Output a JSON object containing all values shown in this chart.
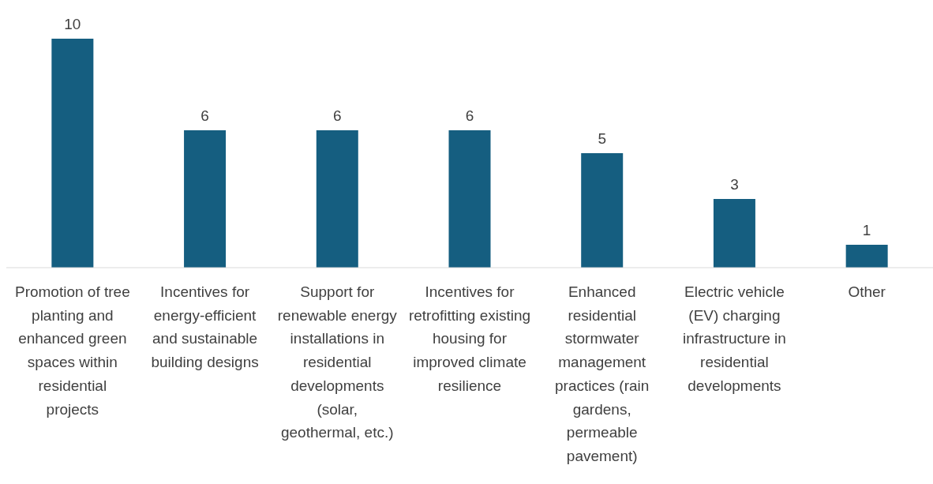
{
  "chart_data": {
    "type": "bar",
    "categories": [
      "Promotion of tree planting and enhanced green spaces within residential projects",
      "Incentives for energy-efficient and sustainable building designs",
      "Support for renewable energy installations in residential developments (solar, geothermal, etc.)",
      "Incentives for retrofitting existing housing for improved climate resilience",
      "Enhanced residential stormwater management practices (rain gardens, permeable pavement)",
      "Electric vehicle (EV) charging infrastructure in residential developments",
      "Other"
    ],
    "values": [
      10,
      6,
      6,
      6,
      5,
      3,
      1
    ],
    "color": "#155e80",
    "data_labels": true
  }
}
